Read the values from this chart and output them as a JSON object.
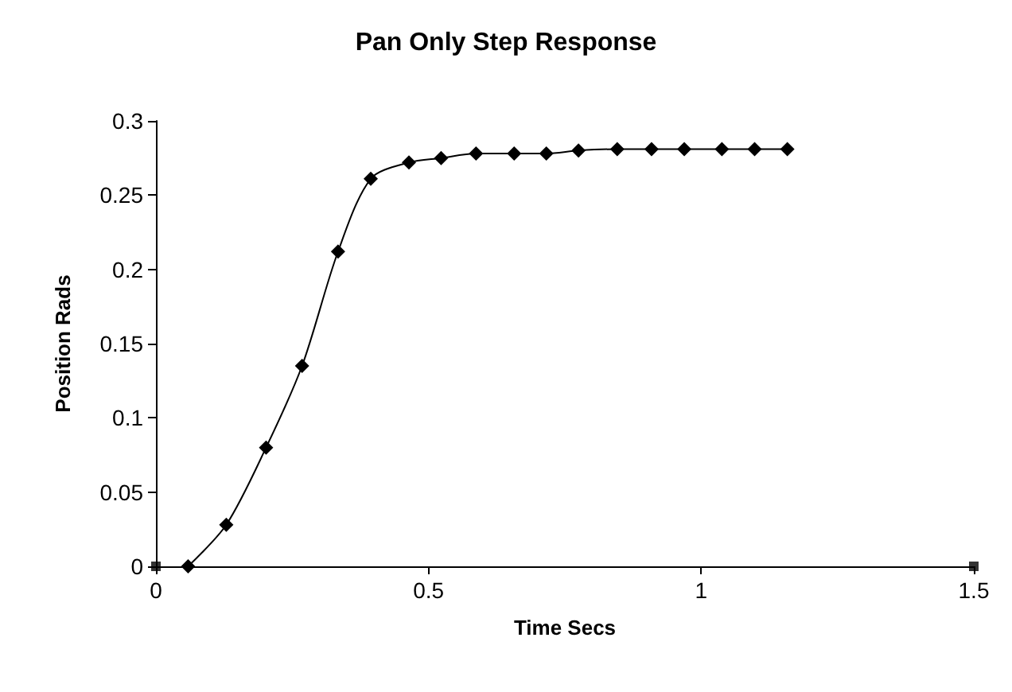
{
  "chart_data": {
    "type": "line",
    "title": "Pan Only Step Response",
    "xlabel": "Time Secs",
    "ylabel": "Position Rads",
    "xlim": [
      0,
      1.5
    ],
    "xticks": [
      0,
      0.5,
      1,
      1.5
    ],
    "ylim": [
      0,
      0.3
    ],
    "yticks": [
      0,
      0.05,
      0.1,
      0.15,
      0.2,
      0.25,
      0.3
    ],
    "grid": false,
    "series": [
      {
        "color": "#000000",
        "marker": "diamond",
        "x": [
          0.059,
          0.129,
          0.202,
          0.268,
          0.334,
          0.394,
          0.464,
          0.523,
          0.587,
          0.657,
          0.716,
          0.775,
          0.846,
          0.909,
          0.969,
          1.038,
          1.098,
          1.158
        ],
        "values": [
          0,
          0.028,
          0.08,
          0.135,
          0.212,
          0.261,
          0.272,
          0.275,
          0.278,
          0.278,
          0.278,
          0.28,
          0.281,
          0.281,
          0.281,
          0.281,
          0.281,
          0.281
        ]
      },
      {
        "type": "scatter",
        "color": "#000000",
        "marker": "square",
        "x": [
          0,
          1.5
        ],
        "values": [
          0,
          0
        ]
      }
    ]
  }
}
